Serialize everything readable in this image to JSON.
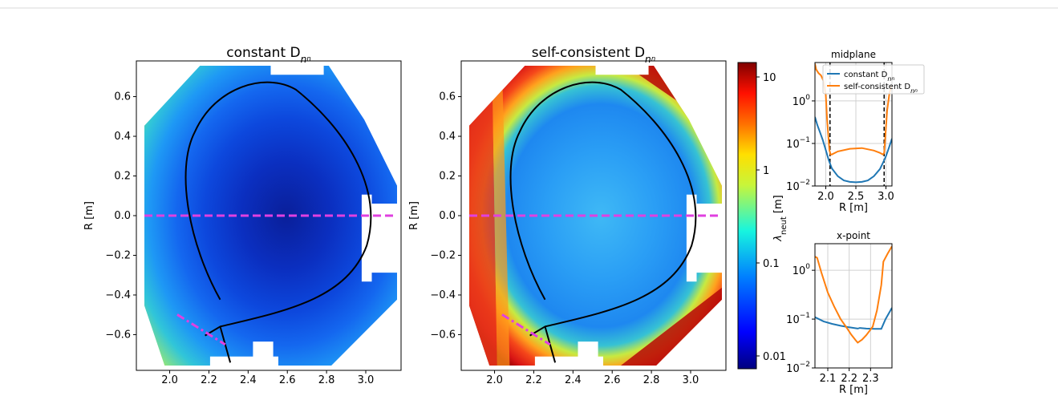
{
  "chart_data": [
    {
      "type": "heatmap",
      "title": "constant D",
      "title_sub": "n",
      "title_subsub": "n",
      "ylabel": "R [m]",
      "xlabel": "",
      "xlim": [
        1.83,
        3.18
      ],
      "ylim": [
        -0.78,
        0.78
      ],
      "xticks": [
        "2.0",
        "2.2",
        "2.4",
        "2.6",
        "2.8",
        "3.0"
      ],
      "yticks": [
        "0.6",
        "0.4",
        "0.2",
        "0.0",
        "−0.2",
        "−0.4",
        "−0.6"
      ],
      "colorscale_log": true,
      "value_min": 0.01,
      "value_max": 0.7,
      "midplane_dashed_color": "#e040e0",
      "separatrix_color": "#000000"
    },
    {
      "type": "heatmap",
      "title": "self-consistent D",
      "title_sub": "n",
      "title_subsub": "n",
      "ylabel": "R [m]",
      "xlabel": "",
      "xlim": [
        1.83,
        3.18
      ],
      "ylim": [
        -0.78,
        0.78
      ],
      "xticks": [
        "2.0",
        "2.2",
        "2.4",
        "2.6",
        "2.8",
        "3.0"
      ],
      "yticks": [
        "0.6",
        "0.4",
        "0.2",
        "0.0",
        "−0.2",
        "−0.4",
        "−0.6"
      ],
      "colorscale_log": true,
      "value_min": 0.05,
      "value_max": 13,
      "colorbar_ticks": [
        "10",
        "1",
        "0.1",
        "0.01"
      ],
      "midplane_dashed_color": "#e040e0"
    },
    {
      "type": "line",
      "title": "midplane",
      "xlabel": "R [m]",
      "ylabel": "λ",
      "ylabel_sub": "neut",
      "ylabel_unit": " [m]",
      "xlim": [
        1.82,
        3.1
      ],
      "ylim": [
        0.01,
        8
      ],
      "log_y": true,
      "xticks": [
        "2.0",
        "2.5",
        "3.0"
      ],
      "yticks": [
        "10",
        "10",
        "10"
      ],
      "ytick_exp": [
        "0",
        "−1",
        "−2"
      ],
      "legend_position": "top-center",
      "vlines": [
        2.07,
        2.97
      ],
      "series": [
        {
          "name": "constant D",
          "name_sub": "n",
          "name_subsub": "n",
          "color": "#1f77b4",
          "x": [
            1.82,
            1.86,
            1.9,
            1.95,
            2.0,
            2.05,
            2.1,
            2.2,
            2.3,
            2.4,
            2.5,
            2.6,
            2.7,
            2.8,
            2.9,
            2.95,
            3.0,
            3.05,
            3.1
          ],
          "y": [
            0.42,
            0.27,
            0.19,
            0.12,
            0.07,
            0.04,
            0.026,
            0.017,
            0.0135,
            0.0125,
            0.0122,
            0.0125,
            0.0135,
            0.017,
            0.025,
            0.035,
            0.05,
            0.08,
            0.13
          ]
        },
        {
          "name": "self-consistent D",
          "name_sub": "n",
          "name_subsub": "n",
          "color": "#ff7f0e",
          "x": [
            1.82,
            1.84,
            1.88,
            1.92,
            1.96,
            1.98,
            2.0,
            2.02,
            2.06,
            2.08,
            2.1,
            2.2,
            2.4,
            2.6,
            2.8,
            2.9,
            2.95,
            2.97,
            2.99,
            3.02,
            3.06,
            3.1
          ],
          "y": [
            7.5,
            5.5,
            4.5,
            4.0,
            3.0,
            2.0,
            1.4,
            0.4,
            0.07,
            0.055,
            0.055,
            0.065,
            0.075,
            0.078,
            0.068,
            0.06,
            0.055,
            0.06,
            0.15,
            0.6,
            1.6,
            2.3
          ]
        }
      ]
    },
    {
      "type": "line",
      "title": "x-point",
      "xlabel": "R [m]",
      "ylabel": "",
      "xlim": [
        2.04,
        2.4
      ],
      "ylim": [
        0.01,
        3.5
      ],
      "log_y": true,
      "xticks": [
        "2.1",
        "2.2",
        "2.3"
      ],
      "yticks": [
        "10",
        "10",
        "10"
      ],
      "ytick_exp": [
        "0",
        "−1",
        "−2"
      ],
      "series": [
        {
          "name": "constant",
          "color": "#1f77b4",
          "x": [
            2.04,
            2.08,
            2.12,
            2.16,
            2.2,
            2.24,
            2.25,
            2.28,
            2.32,
            2.35,
            2.37,
            2.4
          ],
          "y": [
            0.11,
            0.09,
            0.08,
            0.073,
            0.068,
            0.064,
            0.066,
            0.064,
            0.063,
            0.063,
            0.1,
            0.17
          ]
        },
        {
          "name": "self-consistent",
          "color": "#ff7f0e",
          "x": [
            2.04,
            2.05,
            2.07,
            2.1,
            2.13,
            2.16,
            2.19,
            2.21,
            2.23,
            2.24,
            2.26,
            2.28,
            2.31,
            2.33,
            2.35,
            2.36,
            2.38,
            2.4
          ],
          "y": [
            1.9,
            1.8,
            0.9,
            0.35,
            0.18,
            0.1,
            0.065,
            0.048,
            0.037,
            0.033,
            0.038,
            0.047,
            0.07,
            0.15,
            0.5,
            1.5,
            2.2,
            3.1
          ]
        }
      ]
    }
  ]
}
